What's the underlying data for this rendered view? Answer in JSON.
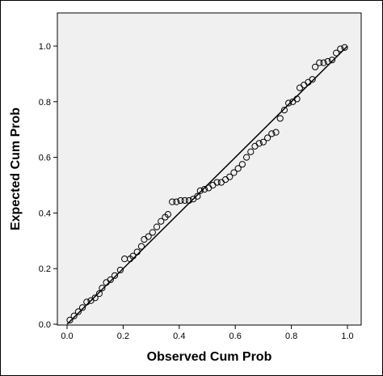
{
  "chart_data": {
    "type": "scatter",
    "title": "",
    "xlabel": "Observed Cum Prob",
    "ylabel": "Expected Cum Prob",
    "xlim": [
      0.0,
      1.0
    ],
    "ylim": [
      0.0,
      1.0
    ],
    "x_ticks": [
      "0.0",
      "0.2",
      "0.4",
      "0.6",
      "0.8",
      "1.0"
    ],
    "y_ticks": [
      "0.0",
      "0.2",
      "0.4",
      "0.6",
      "0.8",
      "1.0"
    ],
    "reference_line": {
      "from": [
        0,
        0
      ],
      "to": [
        1,
        1
      ]
    },
    "grid": false,
    "colors": {
      "plot_background": "#f0f0f0",
      "marker": "#000000",
      "line": "#000000"
    },
    "points": [
      [
        0.01,
        0.015
      ],
      [
        0.025,
        0.03
      ],
      [
        0.04,
        0.045
      ],
      [
        0.055,
        0.06
      ],
      [
        0.07,
        0.08
      ],
      [
        0.085,
        0.085
      ],
      [
        0.1,
        0.095
      ],
      [
        0.115,
        0.11
      ],
      [
        0.125,
        0.13
      ],
      [
        0.14,
        0.15
      ],
      [
        0.155,
        0.16
      ],
      [
        0.17,
        0.175
      ],
      [
        0.19,
        0.195
      ],
      [
        0.205,
        0.235
      ],
      [
        0.225,
        0.235
      ],
      [
        0.235,
        0.245
      ],
      [
        0.25,
        0.26
      ],
      [
        0.265,
        0.28
      ],
      [
        0.275,
        0.305
      ],
      [
        0.29,
        0.315
      ],
      [
        0.305,
        0.33
      ],
      [
        0.32,
        0.35
      ],
      [
        0.335,
        0.37
      ],
      [
        0.35,
        0.385
      ],
      [
        0.36,
        0.395
      ],
      [
        0.375,
        0.44
      ],
      [
        0.39,
        0.44
      ],
      [
        0.405,
        0.445
      ],
      [
        0.42,
        0.445
      ],
      [
        0.435,
        0.445
      ],
      [
        0.45,
        0.45
      ],
      [
        0.465,
        0.46
      ],
      [
        0.475,
        0.48
      ],
      [
        0.49,
        0.485
      ],
      [
        0.505,
        0.49
      ],
      [
        0.52,
        0.5
      ],
      [
        0.535,
        0.51
      ],
      [
        0.55,
        0.51
      ],
      [
        0.565,
        0.52
      ],
      [
        0.58,
        0.53
      ],
      [
        0.595,
        0.545
      ],
      [
        0.61,
        0.56
      ],
      [
        0.625,
        0.575
      ],
      [
        0.64,
        0.6
      ],
      [
        0.655,
        0.62
      ],
      [
        0.67,
        0.64
      ],
      [
        0.685,
        0.65
      ],
      [
        0.7,
        0.655
      ],
      [
        0.715,
        0.67
      ],
      [
        0.73,
        0.685
      ],
      [
        0.745,
        0.69
      ],
      [
        0.76,
        0.74
      ],
      [
        0.775,
        0.77
      ],
      [
        0.79,
        0.795
      ],
      [
        0.805,
        0.8
      ],
      [
        0.82,
        0.81
      ],
      [
        0.83,
        0.85
      ],
      [
        0.845,
        0.86
      ],
      [
        0.86,
        0.87
      ],
      [
        0.875,
        0.88
      ],
      [
        0.885,
        0.925
      ],
      [
        0.9,
        0.94
      ],
      [
        0.915,
        0.94
      ],
      [
        0.93,
        0.945
      ],
      [
        0.945,
        0.95
      ],
      [
        0.96,
        0.975
      ],
      [
        0.975,
        0.99
      ],
      [
        0.99,
        0.995
      ]
    ]
  }
}
